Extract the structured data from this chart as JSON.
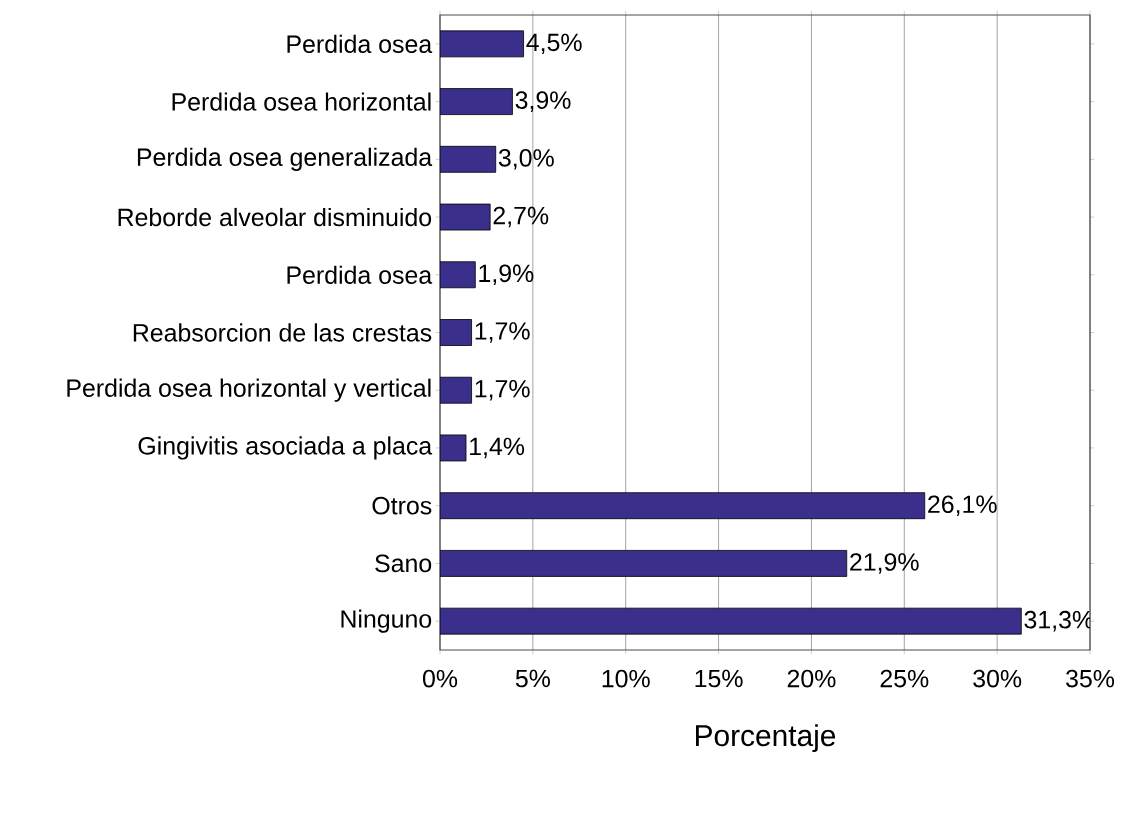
{
  "chart_data": {
    "type": "bar",
    "orientation": "horizontal",
    "xlabel": "Porcentaje",
    "categories": [
      "Perdida osea",
      "Perdida osea horizontal",
      "Perdida osea generalizada",
      "Reborde alveolar disminuido",
      "Perdida osea",
      "Reabsorcion de las crestas",
      "Perdida osea horizontal y vertical",
      "Gingivitis asociada a placa",
      "Otros",
      "Sano",
      "Ninguno"
    ],
    "values": [
      4.5,
      3.9,
      3.0,
      2.7,
      1.9,
      1.7,
      1.7,
      1.4,
      26.1,
      21.9,
      31.3
    ],
    "value_labels": [
      "4,5%",
      "3,9%",
      "3,0%",
      "2,7%",
      "1,9%",
      "1,7%",
      "1,7%",
      "1,4%",
      "26,1%",
      "21,9%",
      "31,3%"
    ],
    "color": "#3b2f8c",
    "xlim": [
      0,
      35
    ],
    "xticks": [
      {
        "value": 0,
        "label": "0%"
      },
      {
        "value": 5,
        "label": "5%"
      },
      {
        "value": 10,
        "label": "10%"
      },
      {
        "value": 15,
        "label": "15%"
      },
      {
        "value": 20,
        "label": "20%"
      },
      {
        "value": 25,
        "label": "25%"
      },
      {
        "value": 30,
        "label": "30%"
      },
      {
        "value": 35,
        "label": "35%"
      }
    ],
    "grid": "x"
  }
}
